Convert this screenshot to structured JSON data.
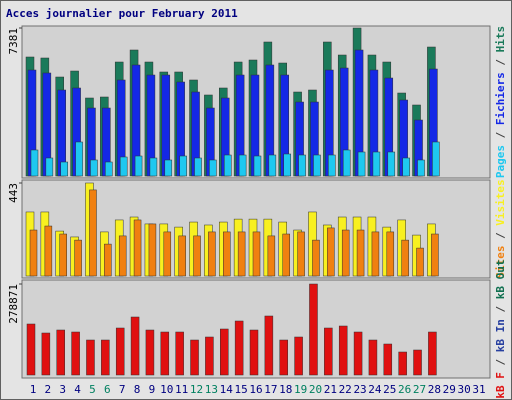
{
  "chart_data": [
    {
      "type": "bar",
      "title": "Acces journalier pour February 2011",
      "categories": [
        "1",
        "2",
        "3",
        "4",
        "5",
        "6",
        "7",
        "8",
        "9",
        "10",
        "11",
        "12",
        "13",
        "14",
        "15",
        "16",
        "17",
        "18",
        "19",
        "20",
        "21",
        "22",
        "23",
        "24",
        "25",
        "26",
        "27",
        "28",
        "29",
        "30",
        "31"
      ],
      "label_colors": [
        "#000080",
        "#000080",
        "#000080",
        "#000080",
        "#008060",
        "#008060",
        "#000080",
        "#000080",
        "#000080",
        "#000080",
        "#000080",
        "#008060",
        "#008060",
        "#000080",
        "#000080",
        "#000080",
        "#000080",
        "#000080",
        "#008060",
        "#008060",
        "#000080",
        "#000080",
        "#000080",
        "#000080",
        "#000080",
        "#008060",
        "#008060",
        "#000080",
        "#000080",
        "#000080",
        "#000080"
      ],
      "legend_separator": " / ",
      "ylim": [
        0,
        7381
      ],
      "yticks": [
        7381
      ],
      "series": [
        {
          "name": "Pages",
          "color": "#1ec8f0",
          "values": [
            1297,
            898,
            698,
            1696,
            798,
            698,
            948,
            997,
            898,
            798,
            997,
            898,
            798,
            1047,
            1047,
            997,
            1047,
            1097,
            1047,
            1047,
            1047,
            1297,
            1197,
            1197,
            1197,
            898,
            798,
            1696,
            null,
            null,
            null
          ]
        },
        {
          "name": "Fichiers",
          "color": "#1428e6",
          "values": [
            5286,
            5137,
            4289,
            4389,
            3391,
            3391,
            4788,
            5536,
            5037,
            5037,
            4688,
            4189,
            3391,
            3890,
            5037,
            5037,
            5536,
            5037,
            3690,
            3690,
            5286,
            5386,
            6284,
            5286,
            4887,
            3790,
            2793,
            5336,
            null,
            null,
            null
          ]
        },
        {
          "name": "Hits",
          "color": "#1a7a5a",
          "values": [
            5935,
            5885,
            4937,
            5236,
            3890,
            3940,
            5685,
            6284,
            5685,
            5187,
            5187,
            4788,
            4040,
            4389,
            5685,
            5785,
            6683,
            5635,
            4189,
            4289,
            6683,
            6034,
            7381,
            6034,
            5685,
            4139,
            3541,
            6433,
            null,
            null,
            null
          ]
        }
      ]
    },
    {
      "type": "bar",
      "ylim": [
        0,
        443
      ],
      "yticks": [
        443
      ],
      "series": [
        {
          "name": "Sites",
          "color": "#f08010",
          "values": [
            219,
            238,
            200,
            171,
            410,
            152,
            191,
            267,
            248,
            210,
            191,
            191,
            210,
            210,
            210,
            210,
            191,
            200,
            210,
            171,
            229,
            219,
            219,
            210,
            210,
            171,
            133,
            200,
            null,
            null,
            null
          ]
        },
        {
          "name": "Visites",
          "color": "#f8f020",
          "values": [
            305,
            305,
            214,
            186,
            443,
            210,
            267,
            281,
            248,
            248,
            233,
            257,
            243,
            257,
            271,
            271,
            271,
            257,
            219,
            305,
            243,
            281,
            281,
            281,
            233,
            267,
            195,
            248,
            null,
            null,
            null
          ]
        }
      ]
    },
    {
      "type": "bar",
      "ylim": [
        0,
        278871
      ],
      "yticks": [
        278871
      ],
      "series": [
        {
          "name": "kB F",
          "color": "#e01010",
          "values": [
            156291,
            128709,
            137903,
            131774,
            107258,
            107258,
            144032,
            177742,
            137903,
            131774,
            131774,
            107258,
            116452,
            140968,
            165484,
            137903,
            180807,
            107258,
            116452,
            278871,
            144032,
            150161,
            131774,
            107258,
            94999,
            70484,
            76613,
            131774,
            null,
            null,
            null
          ]
        },
        {
          "name": "kB In",
          "color": "#2840a0",
          "values": [
            null,
            null,
            null,
            null,
            null,
            null,
            null,
            null,
            null,
            null,
            null,
            null,
            null,
            null,
            null,
            null,
            null,
            null,
            null,
            null,
            null,
            null,
            null,
            null,
            null,
            null,
            null,
            null,
            null,
            null,
            null
          ]
        },
        {
          "name": "kB Out",
          "color": "#107050",
          "values": [
            null,
            null,
            null,
            null,
            null,
            null,
            null,
            null,
            null,
            null,
            null,
            null,
            null,
            null,
            null,
            null,
            null,
            null,
            null,
            null,
            null,
            null,
            null,
            null,
            null,
            null,
            null,
            null,
            null,
            null,
            null
          ]
        }
      ]
    }
  ]
}
